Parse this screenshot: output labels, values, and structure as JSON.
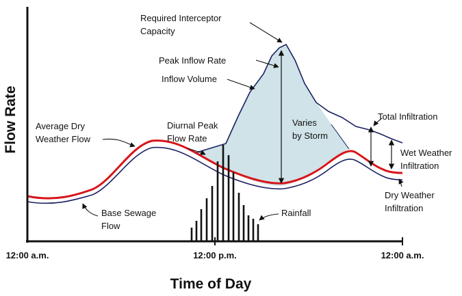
{
  "chart_data": {
    "type": "line",
    "ylabel": "Flow Rate",
    "xlabel": "Time of Day",
    "x_tick_labels": [
      "12:00 a.m.",
      "12:00 p.m.",
      "12:00 a.m."
    ],
    "series": [
      {
        "name": "Average Dry Weather Flow",
        "color": "#d8141a"
      },
      {
        "name": "Base Sewage Flow",
        "color": "#1a2060"
      },
      {
        "name": "Inflow Volume",
        "color": "#cfe3e8"
      },
      {
        "name": "Rainfall",
        "color": "#111111"
      }
    ],
    "annotations": {
      "required_capacity": [
        "Required Interceptor",
        "Capacity"
      ],
      "peak_inflow": "Peak Inflow Rate",
      "inflow_volume": "Inflow Volume",
      "varies": [
        "Varies",
        "by Storm"
      ],
      "avg_dry": [
        "Average Dry",
        "Weather Flow"
      ],
      "diurnal": [
        "Diurnal Peak",
        "Flow Rate"
      ],
      "total_infiltration": "Total Infiltration",
      "wet_weather": [
        "Wet Weather",
        "Infiltration"
      ],
      "dry_weather": [
        "Dry Weather",
        "Infiltration"
      ],
      "base_sewage": [
        "Base Sewage",
        "Flow"
      ],
      "rainfall": "Rainfall"
    }
  }
}
